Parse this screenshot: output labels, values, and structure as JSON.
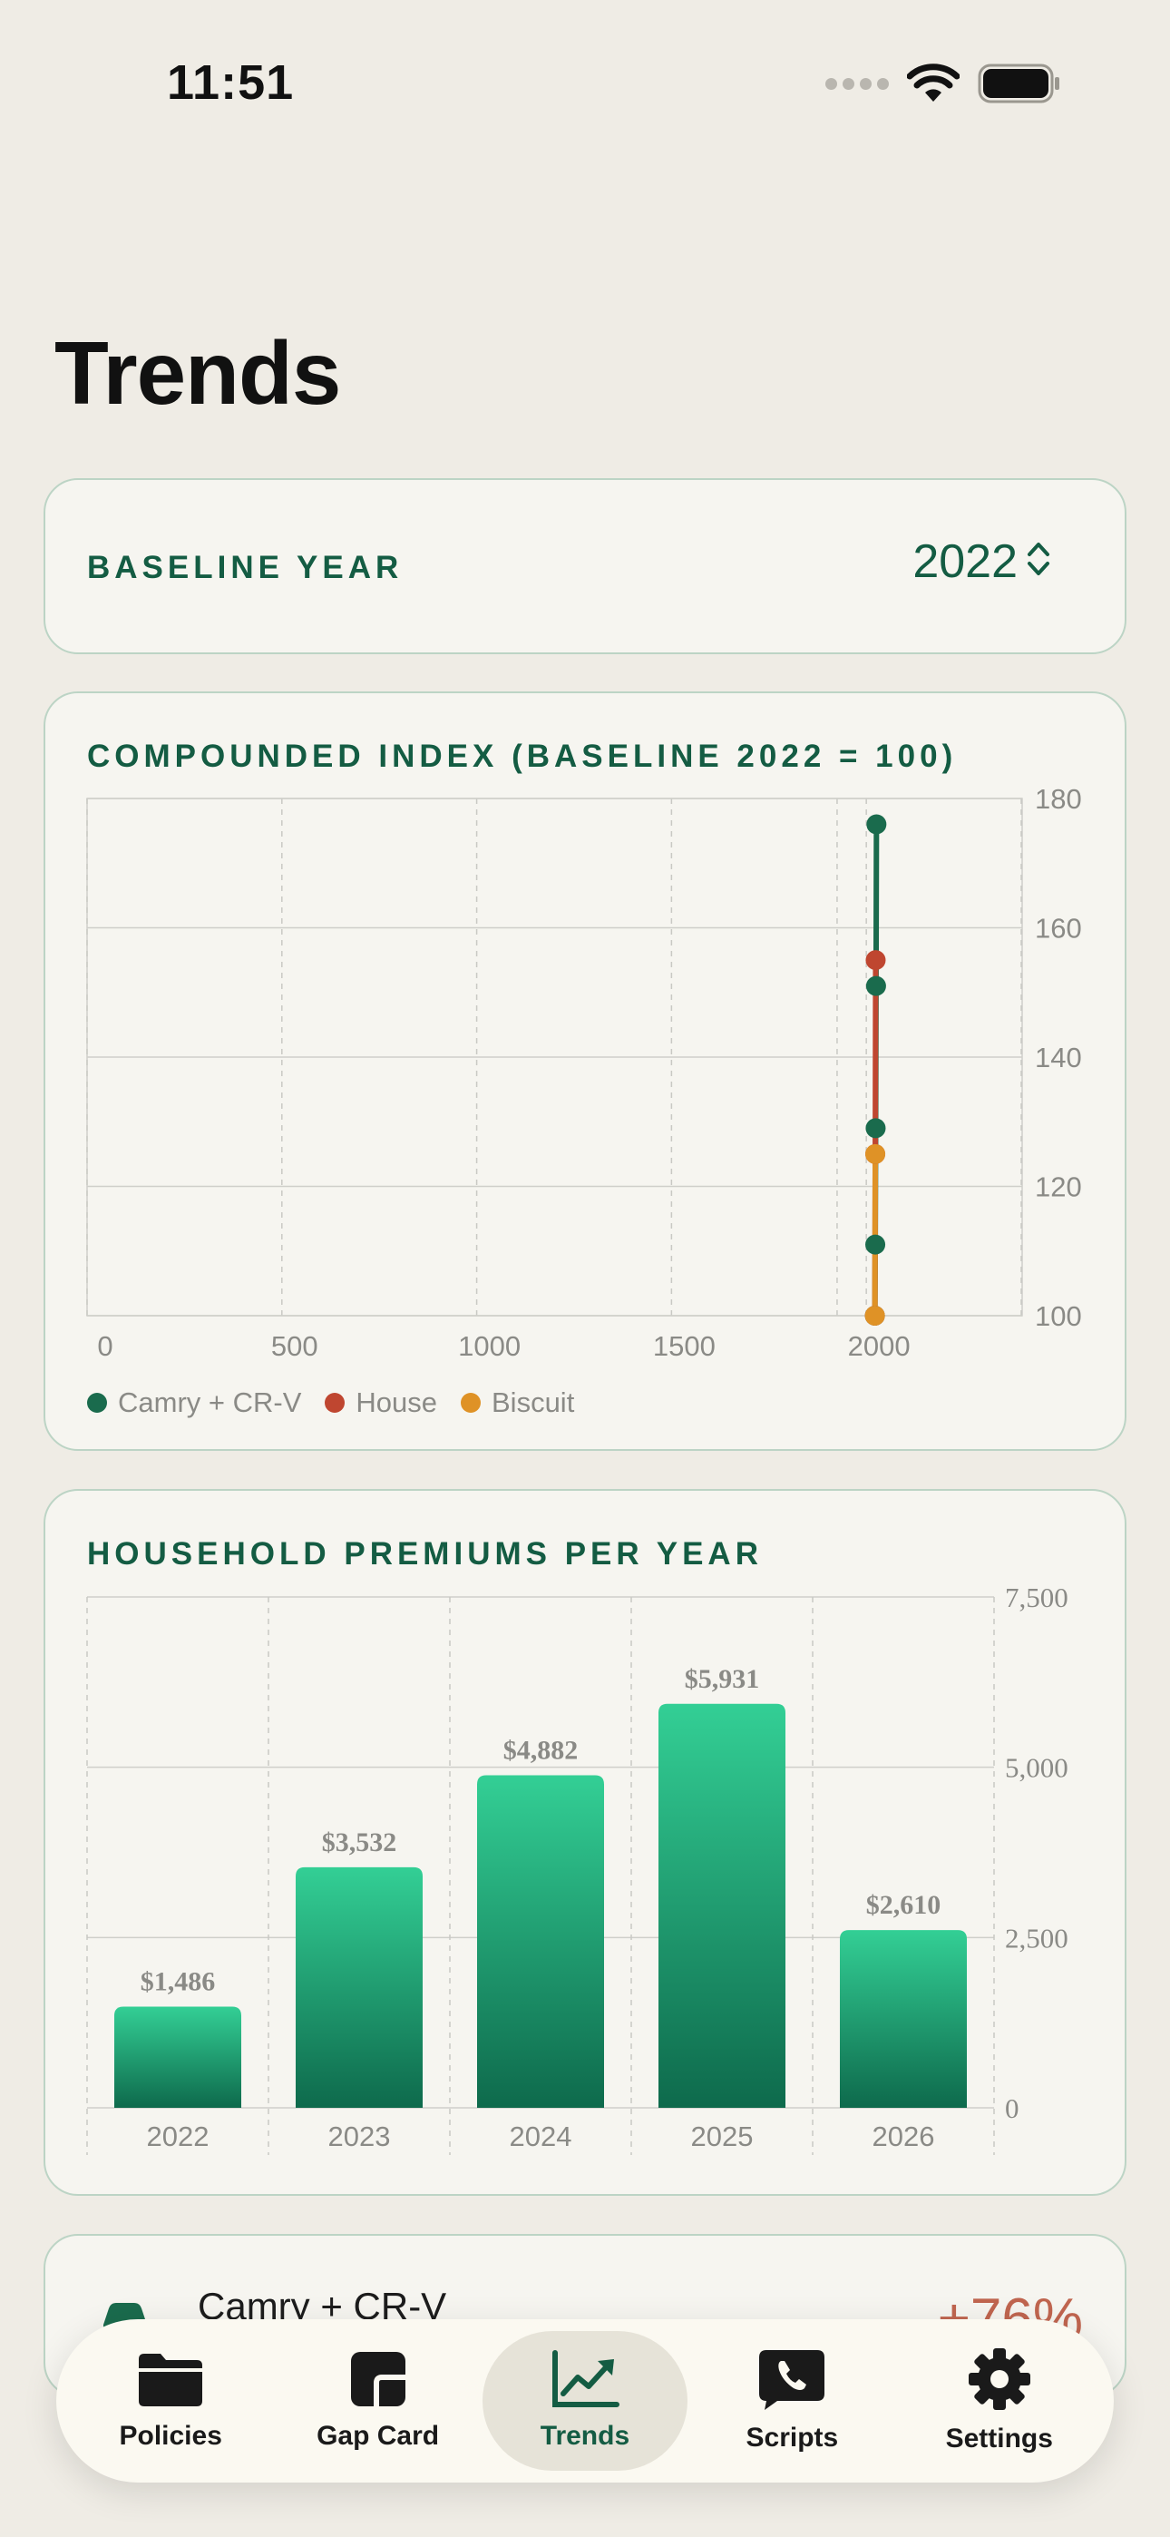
{
  "status_bar": {
    "time": "11:51"
  },
  "page": {
    "title": "Trends"
  },
  "baseline": {
    "label": "BASELINE YEAR",
    "value": "2022"
  },
  "index_chart": {
    "heading": "COMPOUNDED INDEX (BASELINE 2022 = 100)"
  },
  "premiums_chart": {
    "heading": "HOUSEHOLD PREMIUMS PER YEAR"
  },
  "policy_row": {
    "name": "Camry + CR-V",
    "change": "+76%"
  },
  "tabs": [
    {
      "label": "Policies",
      "icon": "folder-icon"
    },
    {
      "label": "Gap Card",
      "icon": "gap-card-icon"
    },
    {
      "label": "Trends",
      "icon": "trend-chart-icon"
    },
    {
      "label": "Scripts",
      "icon": "phone-bubble-icon"
    },
    {
      "label": "Settings",
      "icon": "gear-icon"
    }
  ],
  "colors": {
    "accent": "#145c43",
    "camry": "#1a6b4d",
    "house": "#bf4630",
    "biscuit": "#df9226",
    "bar_top": "#33cf95",
    "bar_bottom": "#0e6a4c",
    "negative_change": "#c0654f"
  },
  "chart_data": [
    {
      "type": "line",
      "title": "COMPOUNDED INDEX (BASELINE 2022 = 100)",
      "xlim": [
        0,
        2400
      ],
      "ylim": [
        100,
        180
      ],
      "x_ticks": [
        "0",
        "500",
        "1000",
        "1500",
        "2000"
      ],
      "y_ticks": [
        "100",
        "120",
        "140",
        "160",
        "180"
      ],
      "grid": true,
      "legend_position": "bottom-left",
      "series": [
        {
          "name": "Camry + CR-V",
          "color": "#1a6b4d",
          "points": [
            {
              "x": 2022,
              "y": 100
            },
            {
              "x": 2023,
              "y": 111
            },
            {
              "x": 2024,
              "y": 129
            },
            {
              "x": 2025,
              "y": 151
            },
            {
              "x": 2026,
              "y": 176
            }
          ]
        },
        {
          "name": "House",
          "color": "#bf4630",
          "points": [
            {
              "x": 2022,
              "y": 100
            },
            {
              "x": 2023,
              "y": 125
            },
            {
              "x": 2024,
              "y": 155
            }
          ]
        },
        {
          "name": "Biscuit",
          "color": "#df9226",
          "points": [
            {
              "x": 2022,
              "y": 100
            },
            {
              "x": 2023,
              "y": 125
            }
          ]
        }
      ]
    },
    {
      "type": "bar",
      "title": "HOUSEHOLD PREMIUMS PER YEAR",
      "categories": [
        "2022",
        "2023",
        "2024",
        "2025",
        "2026"
      ],
      "values": [
        1486,
        3532,
        4882,
        5931,
        2610
      ],
      "value_labels": [
        "$1,486",
        "$3,532",
        "$4,882",
        "$5,931",
        "$2,610"
      ],
      "ylim": [
        0,
        7500
      ],
      "y_ticks": [
        "0",
        "2,500",
        "5,000",
        "7,500"
      ],
      "grid": true
    }
  ]
}
